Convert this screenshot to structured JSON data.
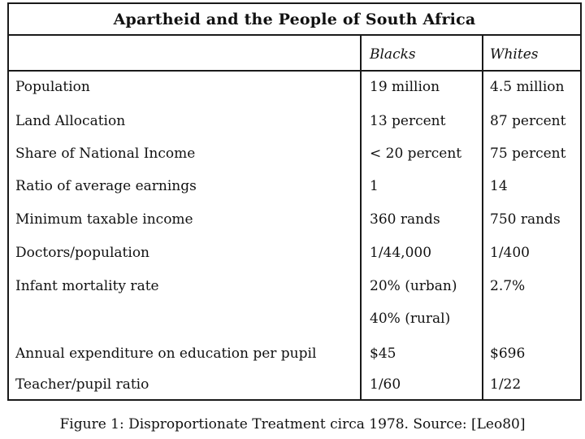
{
  "table": {
    "title": "Apartheid and the People of South Africa",
    "columns": [
      "Blacks",
      "Whites"
    ],
    "rows": [
      {
        "label": "Population",
        "blacks": "19 million",
        "whites": "4.5 million"
      },
      {
        "label": "Land Allocation",
        "blacks": "13 percent",
        "whites": "87 percent"
      },
      {
        "label": "Share of National Income",
        "blacks": "< 20 percent",
        "whites": "75 percent"
      },
      {
        "label": "Ratio of average earnings",
        "blacks": "1",
        "whites": "14"
      },
      {
        "label": "Minimum taxable income",
        "blacks": "360 rands",
        "whites": "750 rands"
      },
      {
        "label": "Doctors/population",
        "blacks": "1/44,000",
        "whites": "1/400"
      },
      {
        "label": "Infant mortality rate",
        "blacks": "20% (urban)",
        "whites": "2.7%"
      },
      {
        "label": "",
        "blacks": "40% (rural)",
        "whites": ""
      },
      {
        "label": "Annual expenditure on education per pupil",
        "blacks": "$45",
        "whites": "$696"
      },
      {
        "label": "Teacher/pupil ratio",
        "blacks": "1/60",
        "whites": "1/22"
      }
    ]
  },
  "caption": "Figure 1: Disproportionate Treatment circa 1978. Source: [Leo80]"
}
